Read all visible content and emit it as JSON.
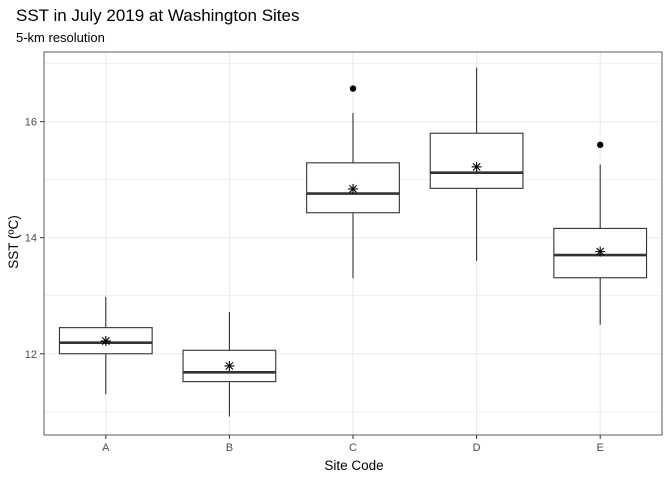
{
  "chart_data": {
    "type": "boxplot",
    "title": "SST in July 2019 at Washington Sites",
    "subtitle": "5-km resolution",
    "xlabel": "Site Code",
    "ylabel": "SST (ºC)",
    "ylim": [
      10.6,
      17.2
    ],
    "y_ticks": [
      12,
      14,
      16
    ],
    "grid": true,
    "categories": [
      "A",
      "B",
      "C",
      "D",
      "E"
    ],
    "boxes": [
      {
        "site": "A",
        "whisker_low": 11.3,
        "q1": 12.0,
        "median": 12.19,
        "q3": 12.45,
        "whisker_high": 12.98,
        "mean": 12.22,
        "outliers": []
      },
      {
        "site": "B",
        "whisker_low": 10.92,
        "q1": 11.52,
        "median": 11.68,
        "q3": 12.06,
        "whisker_high": 12.72,
        "mean": 11.79,
        "outliers": []
      },
      {
        "site": "C",
        "whisker_low": 13.3,
        "q1": 14.43,
        "median": 14.76,
        "q3": 15.29,
        "whisker_high": 16.15,
        "mean": 14.84,
        "outliers": [
          16.57
        ]
      },
      {
        "site": "D",
        "whisker_low": 13.6,
        "q1": 14.85,
        "median": 15.12,
        "q3": 15.8,
        "whisker_high": 16.93,
        "mean": 15.22,
        "outliers": []
      },
      {
        "site": "E",
        "whisker_low": 12.5,
        "q1": 13.31,
        "median": 13.7,
        "q3": 14.16,
        "whisker_high": 15.26,
        "mean": 13.76,
        "outliers": [
          15.6
        ]
      }
    ],
    "colors": {
      "box_line": "#333333",
      "grid": "#ebebeb",
      "panel_border": "#333333",
      "background": "#ffffff"
    }
  }
}
